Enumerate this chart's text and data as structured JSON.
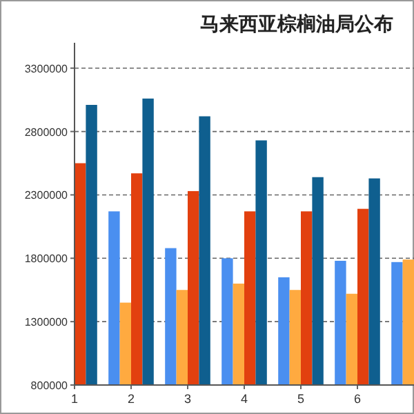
{
  "chart_data": {
    "type": "bar",
    "title": "马来西亚棕榈油局公布",
    "x": [
      1,
      2,
      3,
      4,
      5,
      6,
      7
    ],
    "series": [
      {
        "color": "#4a8ff0",
        "values": [
          null,
          2170000,
          1880000,
          1800000,
          1650000,
          1780000,
          1770000
        ]
      },
      {
        "color": "#ffaa40",
        "values": [
          null,
          1450000,
          1550000,
          1600000,
          1550000,
          1520000,
          1790000
        ]
      },
      {
        "color": "#e2400f",
        "values": [
          2550000,
          2470000,
          2330000,
          2170000,
          2170000,
          2190000,
          null
        ]
      },
      {
        "color": "#0f5f8f",
        "values": [
          3010000,
          3060000,
          2920000,
          2730000,
          2440000,
          2430000,
          null
        ]
      }
    ],
    "xlim": [
      1,
      7
    ],
    "xticks": [
      1,
      2,
      3,
      4,
      5,
      6
    ],
    "ylim": [
      800000,
      3500000
    ],
    "yticks": [
      800000,
      1300000,
      1800000,
      2300000,
      2800000,
      3300000
    ],
    "grid": "y"
  }
}
